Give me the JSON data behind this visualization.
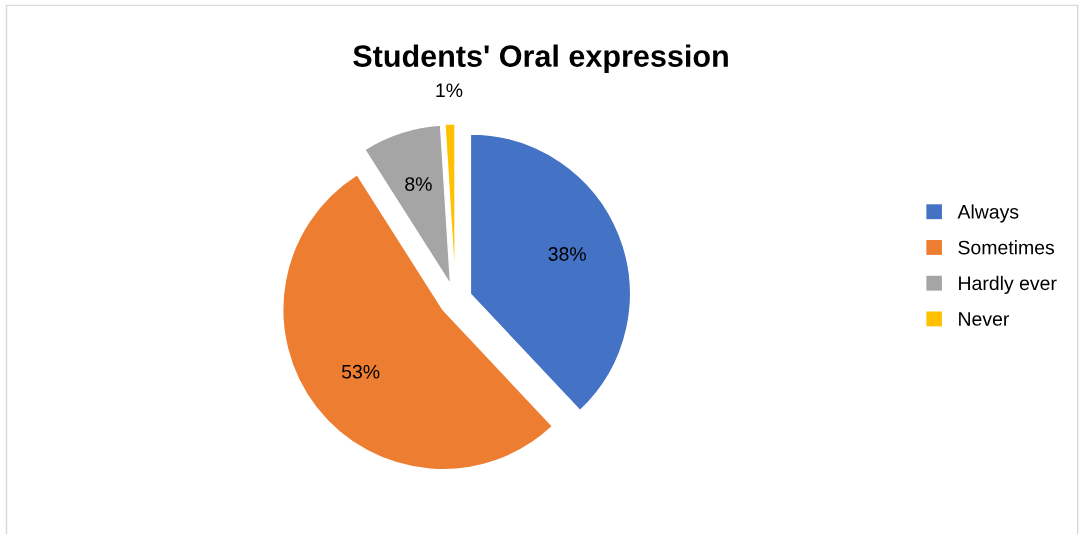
{
  "chart_data": {
    "type": "pie",
    "title": "Students' Oral expression",
    "categories": [
      "Always",
      "Sometimes",
      "Hardly ever",
      "Never"
    ],
    "values": [
      38,
      53,
      8,
      1
    ],
    "colors": [
      "#4472c4",
      "#ed7d31",
      "#a5a5a5",
      "#ffc000"
    ],
    "value_labels": [
      "38%",
      "53%",
      "8%",
      "1%"
    ],
    "legend": "right"
  }
}
